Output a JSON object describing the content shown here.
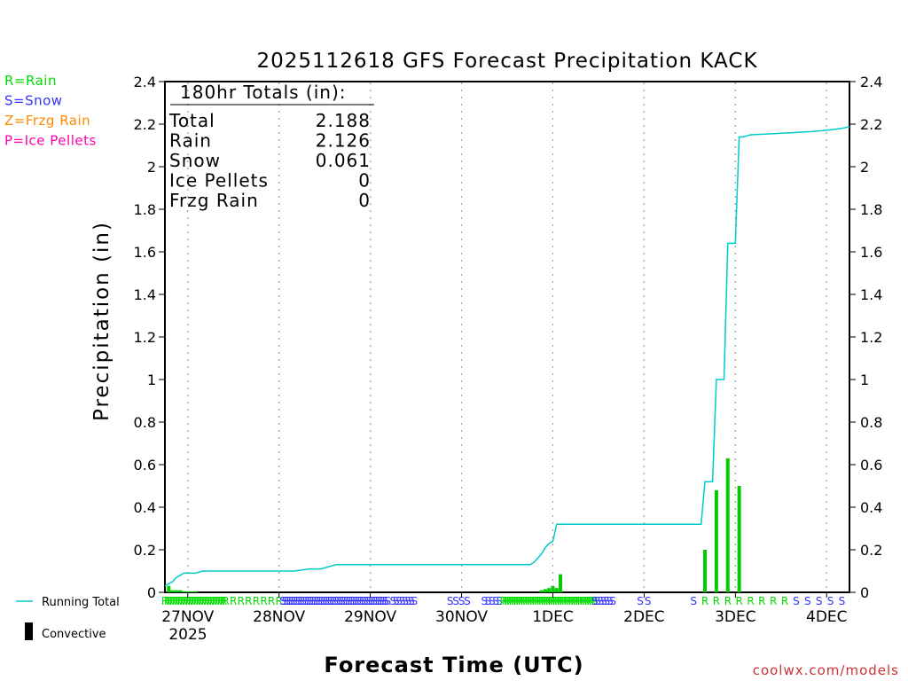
{
  "chart_data": {
    "type": "bar+line",
    "title": "2025112618 GFS Forecast Precipitation KACK",
    "xlabel": "Forecast Time (UTC)",
    "ylabel": "Precipitation (in)",
    "ylim": [
      0,
      2.4
    ],
    "yticks": [
      "0",
      "0.2",
      "0.4",
      "0.6",
      "0.8",
      "1",
      "1.2",
      "1.4",
      "1.6",
      "1.8",
      "2",
      "2.2",
      "2.4"
    ],
    "ytick_values": [
      0,
      0.2,
      0.4,
      0.6,
      0.8,
      1,
      1.2,
      1.4,
      1.6,
      1.8,
      2,
      2.2,
      2.4
    ],
    "xlim_hours": [
      0,
      180
    ],
    "x_categories": [
      {
        "label": "27NOV",
        "hour": 6
      },
      {
        "label": "28NOV",
        "hour": 30
      },
      {
        "label": "29NOV",
        "hour": 54
      },
      {
        "label": "30NOV",
        "hour": 78
      },
      {
        "label": "1DEC",
        "hour": 102
      },
      {
        "label": "2DEC",
        "hour": 126
      },
      {
        "label": "3DEC",
        "hour": 150
      },
      {
        "label": "4DEC",
        "hour": 174
      }
    ],
    "year_label": "2025",
    "totals": {
      "header": "180hr Totals (in):",
      "rows": [
        {
          "label": "Total",
          "value": "2.188"
        },
        {
          "label": "Rain",
          "value": "2.126"
        },
        {
          "label": "Snow",
          "value": "0.061"
        },
        {
          "label": "Ice Pellets",
          "value": "0"
        },
        {
          "label": "Frzg Rain",
          "value": "0"
        }
      ]
    },
    "type_legend": [
      {
        "text": "R=Rain",
        "color": "#00dd00"
      },
      {
        "text": "S=Snow",
        "color": "#3333ff"
      },
      {
        "text": "Z=Frzg Rain",
        "color": "#ff8800"
      },
      {
        "text": "P=Ice Pellets",
        "color": "#ff00aa"
      }
    ],
    "series_legend": [
      {
        "name": "Running Total",
        "style": "line",
        "color": "#00cccc"
      },
      {
        "name": "Convective",
        "style": "bar",
        "color": "#000000"
      }
    ],
    "running_total": {
      "hours": [
        0,
        1,
        2,
        3,
        4,
        5,
        6,
        8,
        10,
        12,
        14,
        30,
        34,
        38,
        40,
        41,
        45,
        60,
        80,
        96,
        97,
        98,
        99,
        100,
        101,
        102,
        103,
        104,
        124,
        140,
        141,
        142,
        143,
        144,
        145,
        146,
        147,
        148,
        149,
        150,
        151,
        152,
        153,
        154,
        160,
        165,
        170,
        173,
        176,
        178,
        180
      ],
      "values": [
        0.03,
        0.04,
        0.05,
        0.07,
        0.08,
        0.09,
        0.09,
        0.09,
        0.1,
        0.1,
        0.1,
        0.1,
        0.1,
        0.11,
        0.11,
        0.11,
        0.13,
        0.13,
        0.13,
        0.13,
        0.14,
        0.16,
        0.18,
        0.21,
        0.23,
        0.24,
        0.32,
        0.32,
        0.32,
        0.32,
        0.32,
        0.52,
        0.52,
        0.52,
        1.0,
        1.0,
        1.0,
        1.64,
        1.64,
        1.64,
        2.14,
        2.14,
        2.145,
        2.15,
        2.155,
        2.16,
        2.165,
        2.17,
        2.175,
        2.18,
        2.188
      ]
    },
    "precip_bars": {
      "color": "#00cc00",
      "hours": [
        1,
        2,
        3,
        4,
        5,
        6,
        7,
        8,
        99,
        100,
        101,
        102,
        103,
        104,
        142,
        145,
        148,
        151
      ],
      "values": [
        0.03,
        0.01,
        0.01,
        0.01,
        0.005,
        0.005,
        0.005,
        0.005,
        0.01,
        0.015,
        0.02,
        0.03,
        0.02,
        0.085,
        0.2,
        0.48,
        0.63,
        0.5
      ]
    },
    "type_markers": {
      "segments": [
        {
          "type": "R",
          "from": 0,
          "to": 16,
          "step": 0.7
        },
        {
          "type": "R",
          "from": 16,
          "to": 30,
          "step": 2
        },
        {
          "type": "S",
          "from": 31,
          "to": 59,
          "step": 0.6
        },
        {
          "type": "S",
          "from": 60,
          "to": 66,
          "step": 0.8
        },
        {
          "type": "S",
          "from": 75,
          "to": 80,
          "step": 1.5
        },
        {
          "type": "S",
          "from": 84,
          "to": 88,
          "step": 1
        },
        {
          "type": "R",
          "from": 89,
          "to": 113,
          "step": 0.6
        },
        {
          "type": "S",
          "from": 113,
          "to": 118,
          "step": 0.8
        },
        {
          "type": "S",
          "from": 125,
          "to": 128,
          "step": 2
        },
        {
          "type": "S",
          "from": 139,
          "to": 139,
          "step": 1
        },
        {
          "type": "R",
          "from": 142,
          "to": 164,
          "step": 3
        },
        {
          "type": "S",
          "from": 166,
          "to": 180,
          "step": 3
        }
      ]
    },
    "credit": "coolwx.com/models"
  }
}
